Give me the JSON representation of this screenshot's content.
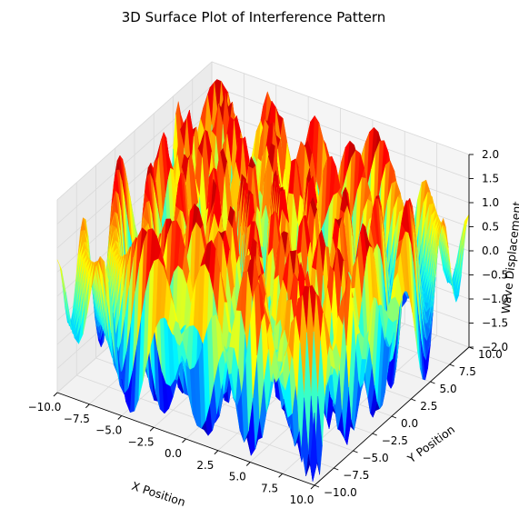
{
  "chart_data": {
    "type": "surface3d",
    "title": "3D Surface Plot of Interference Pattern",
    "xlabel": "X Position",
    "ylabel": "Y Position",
    "zlabel": "Wave Displacement",
    "xlim": [
      -10,
      10
    ],
    "ylim": [
      -10,
      10
    ],
    "zlim": [
      -2,
      2
    ],
    "x_ticks": [
      "−10.0",
      "−7.5",
      "−5.0",
      "−2.5",
      "0.0",
      "2.5",
      "5.0",
      "7.5",
      "10.0"
    ],
    "y_ticks": [
      "−10.0",
      "−7.5",
      "−5.0",
      "−2.5",
      "0.0",
      "2.5",
      "5.0",
      "7.5",
      "10.0"
    ],
    "z_ticks": [
      "−2.0",
      "−1.5",
      "−1.0",
      "−0.5",
      "0.0",
      "0.5",
      "1.0",
      "1.5",
      "2.0"
    ],
    "colormap": "jet",
    "grid": true
  }
}
